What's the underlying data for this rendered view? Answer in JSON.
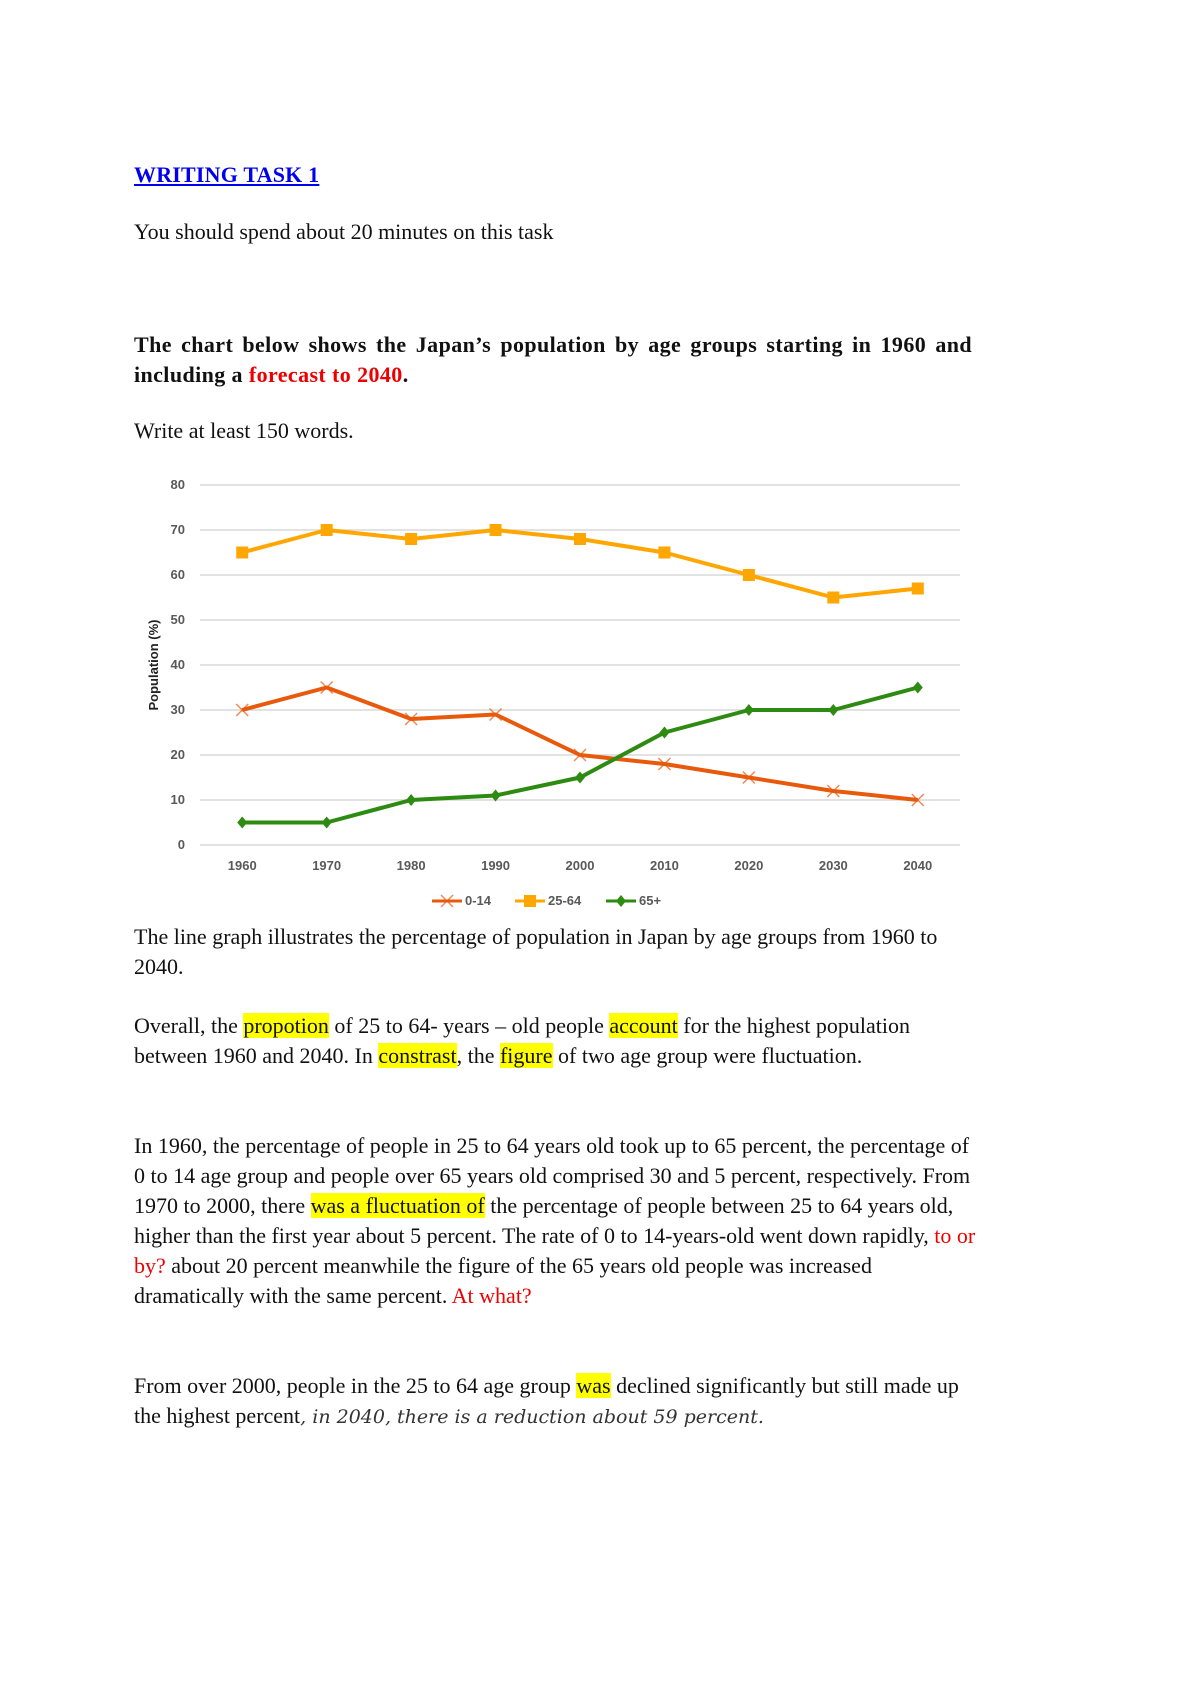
{
  "header": {
    "title": "WRITING TASK 1",
    "instruction": "You should spend about 20 minutes on this task"
  },
  "prompt": {
    "text_before": "The chart below shows the Japan’s population by age groups starting in 1960 and including a ",
    "highlight_red": "forecast to 2040",
    "text_after": ".",
    "word_requirement": "Write at least 150 words."
  },
  "colors": {
    "title_link": "#0000ee",
    "red_annotation": "#ee0000",
    "highlight": "#ffff00",
    "series_0_14": "#e8590c",
    "series_25_64": "#ffa600",
    "series_65_plus": "#2e8b12",
    "gridline": "#d9d9d9"
  },
  "chart_data": {
    "type": "line",
    "title": "",
    "xlabel": "",
    "ylabel": "Population (%)",
    "categories": [
      "1960",
      "1970",
      "1980",
      "1990",
      "2000",
      "2010",
      "2020",
      "2030",
      "2040"
    ],
    "series": [
      {
        "name": "0-14",
        "marker": "x",
        "values": [
          30,
          35,
          28,
          29,
          20,
          18,
          15,
          12,
          10
        ]
      },
      {
        "name": "25-64",
        "marker": "square",
        "values": [
          65,
          70,
          68,
          70,
          68,
          65,
          60,
          55,
          57
        ]
      },
      {
        "name": "65+",
        "marker": "diamond",
        "values": [
          5,
          5,
          10,
          11,
          15,
          25,
          30,
          30,
          35
        ]
      }
    ],
    "yticks": [
      "0",
      "10",
      "20",
      "30",
      "40",
      "50",
      "60",
      "70",
      "80"
    ],
    "ylim": [
      0,
      80
    ],
    "grid": true,
    "legend_position": "bottom"
  },
  "essay": {
    "p1": "The line graph illustrates the percentage of population in Japan by age groups from 1960 to 2040.",
    "p2": [
      {
        "t": "Overall, the ",
        "s": ""
      },
      {
        "t": "propotion",
        "s": "hl"
      },
      {
        "t": " of 25 to 64- years – old people ",
        "s": ""
      },
      {
        "t": "account",
        "s": "hl"
      },
      {
        "t": " for the highest population between 1960 and 2040. In ",
        "s": ""
      },
      {
        "t": "constrast",
        "s": "hl"
      },
      {
        "t": ", the ",
        "s": ""
      },
      {
        "t": "figure",
        "s": "hl"
      },
      {
        "t": " of two age group were fluctuation.",
        "s": ""
      }
    ],
    "p3": [
      {
        "t": "In 1960, the percentage of people in 25 to 64 years old took up to 65 percent, the percentage of 0 to 14 age group and people over 65 years old comprised 30 and 5 percent, respectively. From 1970 to 2000, there ",
        "s": ""
      },
      {
        "t": "was a fluctuation of",
        "s": "hl"
      },
      {
        "t": " the percentage of people between 25 to 64 years old, higher than the first year about 5 percent. The rate of 0 to 14-years-old went down rapidly, ",
        "s": ""
      },
      {
        "t": "to or by?",
        "s": "red"
      },
      {
        "t": " about 20 percent meanwhile the figure of the 65 years old people was increased dramatically with the same percent. ",
        "s": ""
      },
      {
        "t": "At what?",
        "s": "red"
      }
    ],
    "p4": [
      {
        "t": "From over 2000, people in the 25 to 64 age group ",
        "s": ""
      },
      {
        "t": "was",
        "s": "hl"
      },
      {
        "t": " declined significantly but still made up the highest percent",
        "s": ""
      },
      {
        "t": ", in 2040, there is a reduction about 59 percent.",
        "s": "it"
      }
    ]
  }
}
